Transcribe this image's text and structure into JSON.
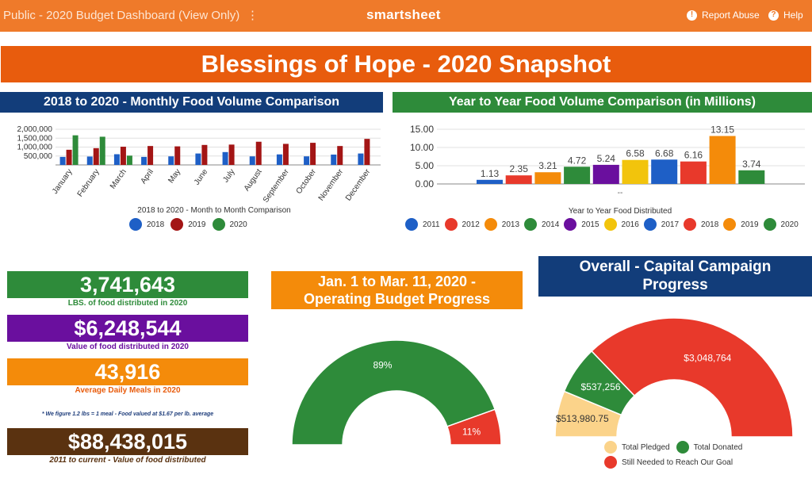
{
  "topbar": {
    "title": "Public - 2020 Budget Dashboard (View Only)",
    "menu_icon": "⋮",
    "brand": "smartsheet",
    "report_abuse": "Report Abuse",
    "help": "Help"
  },
  "banner": {
    "title": "Blessings of Hope - 2020 Snapshot"
  },
  "monthly": {
    "header": "2018 to 2020 - Monthly Food Volume Comparison",
    "chart_data": {
      "type": "bar",
      "categories": [
        "January",
        "February",
        "March",
        "April",
        "May",
        "June",
        "July",
        "August",
        "September",
        "October",
        "November",
        "December"
      ],
      "series": [
        {
          "name": "2018",
          "color": "#1e5fc6",
          "values": [
            450000,
            470000,
            600000,
            450000,
            480000,
            640000,
            720000,
            480000,
            590000,
            480000,
            580000,
            640000
          ]
        },
        {
          "name": "2019",
          "color": "#a31515",
          "values": [
            850000,
            940000,
            1020000,
            1060000,
            1040000,
            1120000,
            1140000,
            1300000,
            1180000,
            1240000,
            1060000,
            1460000
          ]
        },
        {
          "name": "2020",
          "color": "#2e8b3a",
          "values": [
            1660000,
            1580000,
            520000,
            0,
            0,
            0,
            0,
            0,
            0,
            0,
            0,
            0
          ]
        }
      ],
      "yticks": [
        "2,000,000",
        "1,500,000",
        "1,000,000",
        "500,000"
      ],
      "ylim": [
        0,
        2000000
      ],
      "xlabel": "2018 to 2020 - Month to Month Comparison",
      "legend": "bottom"
    }
  },
  "yearly": {
    "header": "Year to Year Food Volume Comparison (in Millions)",
    "chart_data": {
      "type": "bar",
      "categories": [
        "2011",
        "2012",
        "2013",
        "2014",
        "2015",
        "2016",
        "2017",
        "2018",
        "2019",
        "2020"
      ],
      "values": [
        1.13,
        2.35,
        3.21,
        4.72,
        5.24,
        6.58,
        6.68,
        6.16,
        13.15,
        3.74
      ],
      "labels": [
        "1.13",
        "2.35",
        "3.21",
        "4.72",
        "5.24",
        "6.58",
        "6.68",
        "6.16",
        "13.15",
        "3.74"
      ],
      "colors": [
        "#1e5fc6",
        "#e8392b",
        "#f48b0a",
        "#2e8b3a",
        "#6a0f9e",
        "#f2c40c",
        "#1e5fc6",
        "#e8392b",
        "#f48b0a",
        "#2e8b3a"
      ],
      "yticks": [
        "15.00",
        "10.00",
        "5.00",
        "0.00"
      ],
      "ylim": [
        0,
        15
      ],
      "x_tick": "--",
      "xlabel": "Year to Year Food Distributed",
      "legend": "bottom"
    }
  },
  "metrics": [
    {
      "value": "3,741,643",
      "caption": "LBS. of food distributed in 2020",
      "bg": "#2e8b3a",
      "color": "#2e8b3a"
    },
    {
      "value": "$6,248,544",
      "caption": "Value of food distributed in 2020",
      "bg": "#6a0f9e",
      "color": "#6a0f9e"
    },
    {
      "value": "43,916",
      "caption": "Average Daily Meals in 2020",
      "bg": "#f48b0a",
      "color": "#e85c0d"
    }
  ],
  "note": "* We figure 1.2 lbs = 1 meal - Food valued at $1.67 per lb. average",
  "total": {
    "value": "$88,438,015",
    "caption": "2011 to current - Value of food distributed",
    "bg": "#5a3210",
    "color": "#5a3210"
  },
  "operating": {
    "header_line1": "Jan. 1 to Mar. 11, 2020 -",
    "header_line2": "Operating Budget Progress",
    "chart_data": {
      "type": "pie",
      "values": [
        89,
        11
      ],
      "labels": [
        "89%",
        "11%"
      ],
      "colors": [
        "#2e8b3a",
        "#e8392b"
      ]
    }
  },
  "campaign": {
    "header_line1": "Overall - Capital Campaign",
    "header_line2": "Progress",
    "chart_data": {
      "type": "pie",
      "labels": [
        "$513,980.75",
        "$537,256",
        "$3,048,764"
      ],
      "values": [
        513980.75,
        537256,
        3048764
      ],
      "series": [
        "Total Pledged",
        "Total Donated",
        "Still Needed to Reach Our Goal"
      ],
      "colors": [
        "#fbd38a",
        "#2e8b3a",
        "#e8392b"
      ]
    }
  }
}
